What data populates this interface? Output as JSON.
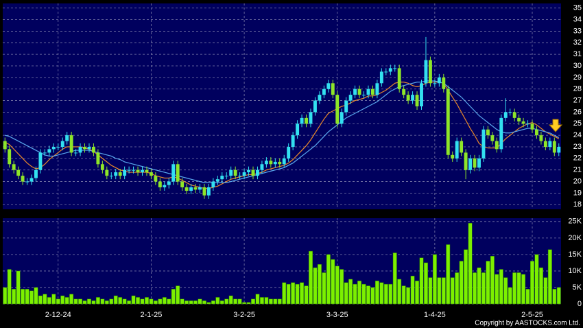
{
  "chart_data": [
    {
      "type": "candlestick",
      "categories": [
        null,
        null,
        null,
        null,
        null,
        null,
        null,
        null,
        null,
        null,
        null,
        null,
        "2-12-24",
        null,
        null,
        null,
        null,
        null,
        null,
        null,
        null,
        null,
        null,
        null,
        null,
        null,
        null,
        null,
        null,
        null,
        null,
        null,
        null,
        "2-1-25",
        null,
        null,
        null,
        null,
        null,
        null,
        null,
        null,
        null,
        null,
        null,
        null,
        null,
        null,
        null,
        null,
        null,
        null,
        null,
        null,
        "3-2-25",
        null,
        null,
        null,
        null,
        null,
        null,
        null,
        null,
        null,
        null,
        null,
        null,
        null,
        null,
        null,
        null,
        null,
        null,
        null,
        null,
        "3-3-25",
        null,
        null,
        null,
        null,
        null,
        null,
        null,
        null,
        null,
        null,
        null,
        null,
        null,
        null,
        null,
        null,
        null,
        null,
        null,
        null,
        null,
        "1-4-25",
        null,
        null,
        null,
        null,
        null,
        null,
        null,
        null,
        null,
        null,
        null,
        null,
        null,
        null,
        null,
        null,
        null,
        null,
        null,
        null,
        null,
        "2-5-25",
        null,
        null,
        null,
        null,
        null,
        null
      ],
      "open": [
        23.5,
        22.8,
        21.5,
        21,
        20.5,
        20,
        20,
        20.3,
        21,
        22.5,
        22.5,
        22.8,
        23,
        23,
        23.5,
        24,
        22.5,
        22.5,
        23,
        22.8,
        23,
        22.5,
        21.5,
        21,
        20.5,
        20.5,
        20.8,
        20.5,
        21,
        21,
        21,
        20.8,
        21,
        20.8,
        20.5,
        20,
        19.5,
        19.7,
        20,
        21.5,
        20,
        19.5,
        19.2,
        19.5,
        19.3,
        19.5,
        18.8,
        19.5,
        20,
        20.2,
        20.5,
        20.5,
        21,
        20.5,
        20.5,
        20.8,
        21,
        20.5,
        21,
        21.5,
        21.8,
        21.5,
        21.7,
        21.5,
        22,
        23,
        24,
        25,
        25.5,
        25,
        26,
        27,
        27.5,
        28,
        28.5,
        27.5,
        25,
        26,
        27,
        27.5,
        28,
        27.5,
        27.5,
        28,
        27.5,
        28.5,
        29.5,
        29.5,
        29.8,
        29.8,
        28,
        27.5,
        27,
        27.5,
        26.5,
        28.5,
        30.5,
        28.5,
        28.5,
        29,
        28,
        22.3,
        22,
        23.5,
        22.5,
        21,
        22,
        21.2,
        22,
        24.5,
        24,
        23.5,
        22.8,
        25.5,
        26,
        26,
        25.5,
        25.2,
        25,
        25,
        24.5,
        24,
        23.5,
        23,
        23.5,
        22.5
      ],
      "high": [
        23.8,
        23.1,
        21.8,
        21.3,
        20.8,
        20.3,
        20.6,
        21.3,
        22.8,
        22.8,
        23.1,
        23.3,
        23.3,
        23.8,
        24.3,
        24.3,
        22.8,
        23.3,
        23.3,
        23.3,
        23.3,
        22.8,
        21.8,
        21.3,
        20.8,
        21.1,
        21.1,
        21.3,
        21.3,
        21.3,
        21.3,
        21.3,
        21.3,
        21.1,
        20.8,
        20.3,
        20,
        20.3,
        21.8,
        21.8,
        20.3,
        19.8,
        19.8,
        19.8,
        19.8,
        19.8,
        19.8,
        20.3,
        20.5,
        20.8,
        20.8,
        21.3,
        21.3,
        20.8,
        21.1,
        21.3,
        21.3,
        21.3,
        21.8,
        22.1,
        22.1,
        22,
        22,
        22.3,
        23.3,
        24.3,
        25.3,
        25.8,
        25.8,
        26.3,
        27.3,
        27.8,
        28.3,
        28.8,
        28.8,
        27.8,
        26.3,
        27.3,
        27.8,
        28.3,
        28.3,
        27.8,
        28.3,
        28.3,
        28.8,
        29.8,
        29.8,
        30.1,
        30.1,
        30.1,
        28.3,
        27.8,
        27.8,
        27.8,
        28.8,
        32.5,
        30.8,
        28.8,
        29.3,
        29.3,
        28.3,
        22.6,
        23.8,
        23.8,
        22.8,
        22.3,
        22.3,
        22.3,
        24.8,
        24.8,
        24.3,
        23.8,
        25.8,
        27.2,
        26.3,
        26.3,
        25.8,
        25.5,
        25.3,
        25.3,
        24.8,
        24.3,
        23.8,
        23.8,
        23.8,
        23.3
      ],
      "low": [
        22.5,
        21.2,
        20.7,
        20.2,
        19.7,
        19.7,
        19.7,
        20,
        20.7,
        22.2,
        22.2,
        22.5,
        22.7,
        22.7,
        23.2,
        22.2,
        22.2,
        22.2,
        22.5,
        22.5,
        22.2,
        21.2,
        20.7,
        20.2,
        20.2,
        20.2,
        20.2,
        20.2,
        20.7,
        20.7,
        20.5,
        20.5,
        20.5,
        20.2,
        19.7,
        19.2,
        19.2,
        19.4,
        19.7,
        19.7,
        19.2,
        18.9,
        18.9,
        19,
        19,
        18.5,
        18.5,
        19.2,
        19.7,
        19.9,
        20.2,
        20.2,
        20.2,
        20.2,
        20.2,
        20.5,
        20.2,
        20.2,
        20.7,
        21.2,
        21.2,
        21.2,
        21.2,
        21.2,
        21.7,
        22.7,
        23.7,
        24.7,
        24.7,
        24.7,
        25.7,
        26.7,
        27.2,
        27.7,
        27.2,
        24.7,
        24.7,
        25.7,
        26.7,
        27.2,
        27.2,
        27.2,
        27.2,
        27.2,
        27.2,
        28.2,
        29.2,
        29.2,
        29.5,
        27.7,
        27.2,
        26.7,
        26.7,
        26.2,
        26.2,
        28.2,
        28.2,
        28.2,
        28.2,
        27.7,
        22,
        21.7,
        21.7,
        22.2,
        20.2,
        20.7,
        20.9,
        20.9,
        21.7,
        23.7,
        23.2,
        22.5,
        22.5,
        25.2,
        25.7,
        25.2,
        24.9,
        24.7,
        24.7,
        24.2,
        23.7,
        23.2,
        22.7,
        22.7,
        22.2,
        22.2
      ],
      "close": [
        22.8,
        21.5,
        21,
        20.5,
        20,
        20,
        20.3,
        21,
        22.5,
        22.5,
        22.8,
        23,
        23,
        23.5,
        24,
        22.5,
        22.5,
        23,
        22.8,
        23,
        22.5,
        21.5,
        21,
        20.5,
        20.5,
        20.8,
        20.5,
        21,
        21,
        21,
        20.8,
        21,
        20.8,
        20.5,
        20,
        19.5,
        19.7,
        20,
        21.5,
        20,
        19.5,
        19.2,
        19.5,
        19.3,
        19.5,
        18.8,
        19.5,
        20,
        20.2,
        20.5,
        20.5,
        21,
        20.5,
        20.5,
        20.8,
        21,
        20.5,
        21,
        21.5,
        21.8,
        21.5,
        21.7,
        21.5,
        22,
        23,
        24,
        25,
        25.5,
        25,
        26,
        27,
        27.5,
        28,
        28.5,
        27.5,
        25,
        26,
        27,
        27.5,
        28,
        27.5,
        27.5,
        28,
        27.5,
        28.5,
        29.5,
        29.5,
        29.8,
        29.8,
        28,
        27.5,
        27,
        27.5,
        26.5,
        28.5,
        30.5,
        28.5,
        28.5,
        29,
        28,
        22.3,
        22,
        23.5,
        22.5,
        21,
        22,
        21.2,
        22,
        24.5,
        24,
        23.5,
        22.8,
        25.5,
        26,
        26,
        25.5,
        25.2,
        25,
        25,
        24.5,
        24,
        23.5,
        23,
        23.5,
        22.5,
        23
      ],
      "up_color": "#33e0f0",
      "down_color": "#8ee628",
      "series": [
        {
          "color": "#e8882a",
          "values": [
            23.4,
            23.2,
            22.8,
            22.4,
            22,
            21.6,
            21.3,
            21.1,
            21.2,
            21.5,
            21.9,
            22.2,
            22.5,
            22.8,
            23,
            23,
            23,
            23,
            22.9,
            22.8,
            22.6,
            22.3,
            22,
            21.7,
            21.4,
            21.2,
            21,
            20.9,
            20.8,
            20.8,
            20.8,
            20.8,
            20.8,
            20.7,
            20.5,
            20.4,
            20.3,
            20.3,
            20.4,
            20.3,
            20.1,
            19.9,
            19.7,
            19.6,
            19.5,
            19.4,
            19.4,
            19.5,
            19.6,
            19.8,
            20,
            20.2,
            20.3,
            20.4,
            20.5,
            20.6,
            20.6,
            20.7,
            20.8,
            21,
            21.1,
            21.2,
            21.3,
            21.4,
            21.6,
            21.9,
            22.3,
            22.7,
            23.1,
            23.6,
            24.2,
            24.8,
            25.4,
            25.9,
            26.1,
            26.3,
            26.5,
            26.6,
            26.8,
            27,
            27.1,
            27.2,
            27.4,
            27.4,
            27.5,
            27.7,
            27.9,
            28.2,
            28.5,
            28.6,
            28.6,
            28.5,
            28.3,
            28.2,
            28.3,
            28.5,
            28.6,
            28.6,
            28.6,
            28.5,
            27.9,
            27.3,
            26.7,
            26,
            25.3,
            24.6,
            24,
            23.3,
            23,
            22.9,
            22.9,
            22.9,
            23.3,
            23.7,
            24,
            24.3,
            24.6,
            24.8,
            25,
            25.1,
            24.9,
            24.6,
            24.3,
            24.1,
            23.9,
            23.7
          ]
        },
        {
          "color": "#5aa8ee",
          "values": [
            24,
            23.9,
            23.7,
            23.5,
            23.3,
            23.1,
            22.9,
            22.7,
            22.5,
            22.3,
            22.2,
            22.2,
            22.3,
            22.4,
            22.5,
            22.6,
            22.7,
            22.7,
            22.7,
            22.7,
            22.6,
            22.5,
            22.4,
            22.3,
            22.2,
            22,
            21.9,
            21.7,
            21.6,
            21.5,
            21.4,
            21.3,
            21.2,
            21.1,
            21,
            20.9,
            20.8,
            20.7,
            20.6,
            20.5,
            20.4,
            20.3,
            20.2,
            20.1,
            20,
            19.9,
            19.9,
            19.9,
            19.9,
            19.9,
            19.9,
            20,
            20.1,
            20.2,
            20.3,
            20.4,
            20.5,
            20.6,
            20.7,
            20.8,
            20.9,
            21,
            21.1,
            21.2,
            21.4,
            21.6,
            21.9,
            22.2,
            22.5,
            22.8,
            23.1,
            23.5,
            23.9,
            24.3,
            24.6,
            24.9,
            25.2,
            25.5,
            25.7,
            25.9,
            26.1,
            26.3,
            26.5,
            26.7,
            26.9,
            27.2,
            27.5,
            27.8,
            28,
            28.2,
            28.3,
            28.4,
            28.5,
            28.6,
            28.6,
            28.7,
            28.7,
            28.7,
            28.6,
            28.5,
            28.2,
            27.9,
            27.6,
            27.3,
            26.9,
            26.5,
            26.1,
            25.7,
            25.4,
            25.1,
            24.8,
            24.5,
            24.3,
            24.2,
            24.2,
            24.3,
            24.4,
            24.5,
            24.6,
            24.6,
            24.5,
            24.4,
            24.3,
            24.2,
            24,
            23.8
          ]
        }
      ],
      "ylim": [
        17.6,
        35.4
      ],
      "yticks": [
        18,
        19,
        20,
        21,
        22,
        23,
        24,
        25,
        26,
        27,
        28,
        29,
        30,
        31,
        32,
        33,
        34,
        35
      ],
      "grid": true
    },
    {
      "type": "bar",
      "color": "#7cf000",
      "values": [
        5000,
        10500,
        4500,
        10000,
        4500,
        4500,
        4000,
        5000,
        2500,
        3000,
        2000,
        3000,
        1500,
        2500,
        2000,
        3000,
        1500,
        1500,
        1000,
        1500,
        1000,
        2000,
        1500,
        1000,
        1500,
        2500,
        2000,
        1500,
        1000,
        2500,
        2000,
        1500,
        2000,
        1500,
        1000,
        1500,
        2000,
        1500,
        4500,
        5500,
        1500,
        1000,
        1000,
        1000,
        1500,
        1000,
        500,
        1000,
        2000,
        1000,
        1500,
        2500,
        1500,
        1500,
        500,
        500,
        1500,
        3000,
        2000,
        2000,
        1500,
        1500,
        1500,
        6500,
        6000,
        6500,
        6000,
        6500,
        5500,
        16000,
        11000,
        12000,
        9500,
        15000,
        13500,
        11500,
        10500,
        6500,
        7500,
        6000,
        7000,
        6000,
        5500,
        5000,
        7000,
        6500,
        6000,
        6000,
        15500,
        7500,
        5500,
        5000,
        8500,
        7000,
        14000,
        12500,
        8000,
        15000,
        8000,
        8000,
        18000,
        8000,
        9500,
        13000,
        16500,
        24500,
        9500,
        11000,
        9500,
        13000,
        14500,
        9000,
        10500,
        8000,
        5000,
        9500,
        9500,
        9000,
        4500,
        13000,
        15000,
        11000,
        8000,
        16500,
        4500,
        5000
      ],
      "ylim": [
        0,
        26000
      ],
      "yticks": [
        0,
        {
          "value": 5000,
          "label": "5K"
        },
        {
          "value": 10000,
          "label": "10K"
        },
        {
          "value": 15000,
          "label": "15K"
        },
        {
          "value": 20000,
          "label": "20K"
        },
        {
          "value": 25000,
          "label": "25K"
        }
      ],
      "grid": true,
      "copyright": "Copyright by AASTOCKS.com Ltd."
    }
  ]
}
